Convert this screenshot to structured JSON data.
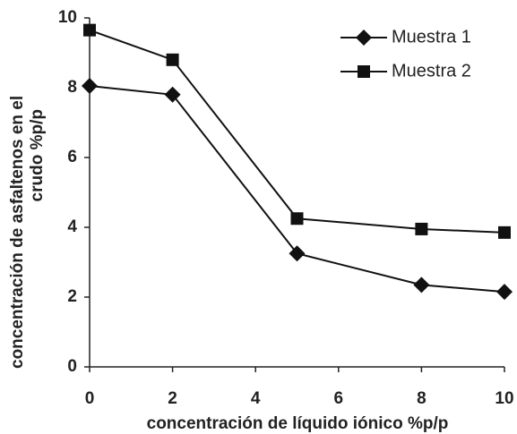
{
  "chart_data": {
    "type": "line",
    "xlabel": "concentración de líquido iónico  %p/p",
    "ylabel": [
      "concentración de asfaltenos en el",
      "crudo  %p/p"
    ],
    "x": [
      0,
      2,
      5,
      8,
      10
    ],
    "series": [
      {
        "name": "Muestra 1",
        "color": "#111111",
        "marker": "diamond",
        "values": [
          8.05,
          7.8,
          3.25,
          2.35,
          2.15
        ]
      },
      {
        "name": "Muestra 2",
        "color": "#111111",
        "marker": "square",
        "values": [
          9.65,
          8.8,
          4.25,
          3.95,
          3.85
        ]
      }
    ],
    "xlim": [
      0,
      10
    ],
    "xticks": [
      0,
      2,
      4,
      6,
      8,
      10
    ],
    "ylim": [
      0,
      10
    ],
    "yticks": [
      0,
      2,
      4,
      6,
      8,
      10
    ],
    "grid": false,
    "legend": "upper right"
  }
}
